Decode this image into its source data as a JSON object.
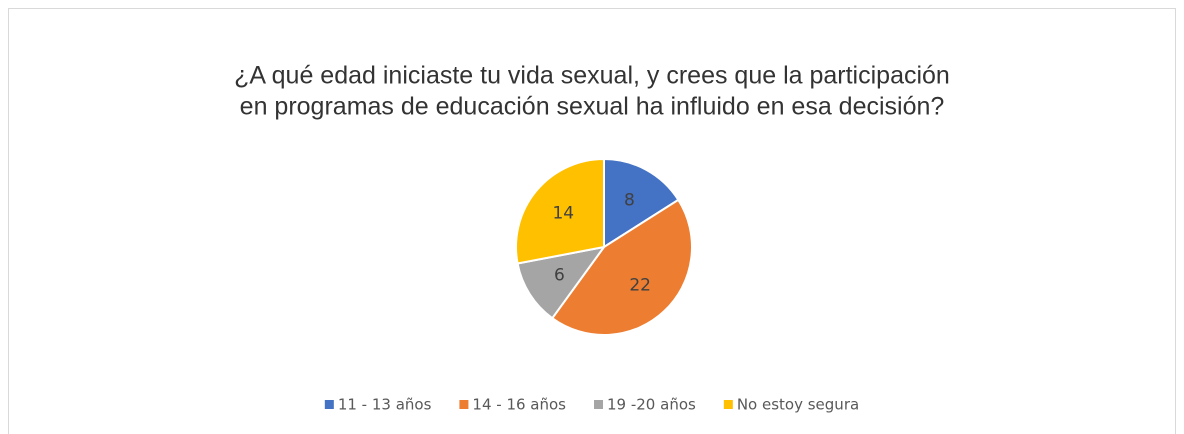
{
  "chart_data": {
    "type": "pie",
    "title": [
      "¿A qué edad iniciaste tu vida sexual, y crees que la participación",
      "en programas de educación sexual ha influido en esa decisión?"
    ],
    "categories": [
      "11 - 13 años",
      "14 - 16 años",
      "19 -20 años",
      "No estoy segura"
    ],
    "values": [
      8,
      22,
      6,
      14
    ],
    "colors": [
      "#4472c4",
      "#ed7d31",
      "#a5a5a5",
      "#ffc000"
    ],
    "legend": "bottom"
  }
}
